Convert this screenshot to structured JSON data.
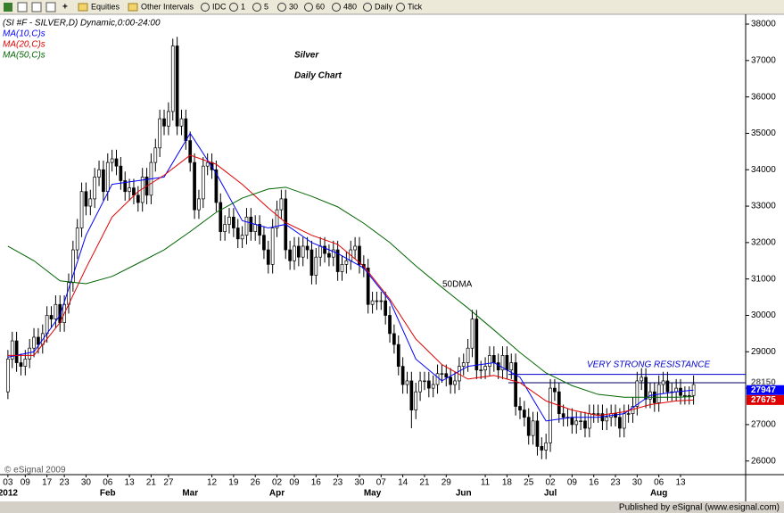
{
  "toolbar": {
    "items": [
      "Equities",
      "Other Intervals",
      "IDC",
      "1",
      "5",
      "30",
      "60",
      "480",
      "Daily",
      "Tick"
    ]
  },
  "footer": {
    "publisher": "Published by eSignal (www.esignal.com)",
    "copyright": "© eSignal 2009"
  },
  "chart_data": {
    "type": "candlestick",
    "title": "(SI #F - SILVER,D) Dynamic,0:00-24:00",
    "annotations": {
      "heading": [
        "Silver",
        "Daily Chart"
      ],
      "ma_label": "50DMA",
      "resistance_label": "VERY STRONG RESISTANCE"
    },
    "xlim": [
      -1,
      170
    ],
    "ylim": [
      25650,
      38270
    ],
    "yticks": [
      26000,
      27000,
      28000,
      29000,
      30000,
      31000,
      32000,
      33000,
      34000,
      35000,
      36000,
      37000,
      38000
    ],
    "xticks": [
      {
        "value": 0,
        "label": "03"
      },
      {
        "value": 4,
        "label": "09"
      },
      {
        "value": 9,
        "label": "17"
      },
      {
        "value": 13,
        "label": "23"
      },
      {
        "value": 18,
        "label": "30"
      },
      {
        "value": 23,
        "label": "06"
      },
      {
        "value": 28,
        "label": "13"
      },
      {
        "value": 33,
        "label": "21"
      },
      {
        "value": 37,
        "label": "27"
      },
      {
        "value": 47,
        "label": "12"
      },
      {
        "value": 52,
        "label": "19"
      },
      {
        "value": 57,
        "label": "26"
      },
      {
        "value": 62,
        "label": "02"
      },
      {
        "value": 66,
        "label": "09"
      },
      {
        "value": 71,
        "label": "16"
      },
      {
        "value": 76,
        "label": "23"
      },
      {
        "value": 81,
        "label": "30"
      },
      {
        "value": 86,
        "label": "07"
      },
      {
        "value": 91,
        "label": "14"
      },
      {
        "value": 96,
        "label": "21"
      },
      {
        "value": 101,
        "label": "29"
      },
      {
        "value": 110,
        "label": "11"
      },
      {
        "value": 115,
        "label": "18"
      },
      {
        "value": 120,
        "label": "25"
      },
      {
        "value": 125,
        "label": "02"
      },
      {
        "value": 130,
        "label": "09"
      },
      {
        "value": 135,
        "label": "16"
      },
      {
        "value": 140,
        "label": "23"
      },
      {
        "value": 145,
        "label": "30"
      },
      {
        "value": 150,
        "label": "06"
      },
      {
        "value": 155,
        "label": "13"
      }
    ],
    "month_ticks": [
      {
        "value": 0,
        "label": "2012"
      },
      {
        "value": 23,
        "label": "Feb"
      },
      {
        "value": 42,
        "label": "Mar"
      },
      {
        "value": 62,
        "label": "Apr"
      },
      {
        "value": 84,
        "label": "May"
      },
      {
        "value": 105,
        "label": "Jun"
      },
      {
        "value": 125,
        "label": "Jul"
      },
      {
        "value": 150,
        "label": "Aug"
      }
    ],
    "candles": {
      "up_color": "#ffffff",
      "down_color": "#000000",
      "open": [
        27900,
        28800,
        29300,
        28700,
        28600,
        28800,
        29100,
        29400,
        29200,
        29500,
        30000,
        29900,
        30300,
        29800,
        30300,
        30900,
        31800,
        32400,
        33400,
        33000,
        33200,
        33800,
        34000,
        33400,
        34200,
        34300,
        34100,
        33700,
        33400,
        33500,
        33300,
        33100,
        33800,
        33300,
        34200,
        34600,
        35400,
        35200,
        35600,
        37400,
        35200,
        35400,
        34800,
        34200,
        32900,
        33200,
        34100,
        34200,
        34000,
        33100,
        32300,
        32500,
        32700,
        32400,
        32100,
        32200,
        32700,
        32300,
        32500,
        32200,
        31800,
        31400,
        32400,
        32900,
        33200,
        31800,
        31500,
        31900,
        31600,
        31900,
        31800,
        31100,
        31600,
        31900,
        31700,
        31600,
        31800,
        31200,
        31400,
        31500,
        31800,
        31900,
        31400,
        31300,
        30300,
        30400,
        30400,
        30400,
        30000,
        29500,
        29200,
        28600,
        28100,
        28200,
        27400,
        27900,
        28200,
        28200,
        28000,
        28100,
        28400,
        28400,
        28300,
        28100,
        28200,
        28600,
        28700,
        29100,
        29900,
        28500,
        28500,
        28600,
        28900,
        28700,
        28500,
        28900,
        28500,
        28700,
        27500,
        27400,
        27200,
        26700,
        27100,
        26400,
        26300,
        26500,
        28000,
        27900,
        27300,
        27200,
        27200,
        27000,
        27100,
        27100,
        26900,
        27300,
        27300,
        27300,
        27100,
        27200,
        27300,
        27200,
        26900,
        27300,
        27300,
        27500,
        28200,
        28300,
        27700,
        27900,
        27600,
        28100,
        28200,
        27900,
        27900,
        28000,
        27800,
        27800,
        27800
      ],
      "high": [
        29050,
        29550,
        29550,
        28950,
        29050,
        29350,
        29650,
        29650,
        29750,
        30250,
        30250,
        30550,
        30550,
        30550,
        31150,
        32050,
        32650,
        33650,
        33650,
        33450,
        34050,
        34250,
        34250,
        34450,
        34550,
        34550,
        34350,
        33950,
        33750,
        33750,
        33550,
        34050,
        34050,
        34450,
        34850,
        35650,
        35650,
        35850,
        37600,
        37650,
        35650,
        35650,
        35050,
        34450,
        33450,
        34350,
        34450,
        34450,
        34250,
        33350,
        32750,
        32950,
        32950,
        32650,
        32450,
        32950,
        32950,
        32750,
        32750,
        32450,
        32050,
        32650,
        33150,
        33450,
        33450,
        32050,
        32150,
        32150,
        32150,
        32150,
        32050,
        31850,
        32150,
        32150,
        31950,
        32050,
        32050,
        31650,
        31750,
        32050,
        32150,
        32150,
        31650,
        31550,
        30650,
        30650,
        30650,
        30650,
        30250,
        29750,
        29450,
        28850,
        28450,
        28450,
        28150,
        28450,
        28450,
        28450,
        28350,
        28650,
        28650,
        28650,
        28550,
        28450,
        28850,
        28950,
        29350,
        30150,
        30150,
        28750,
        28850,
        29150,
        29150,
        28950,
        29150,
        29150,
        28950,
        28950,
        27750,
        27650,
        27450,
        27350,
        27350,
        26650,
        26750,
        28250,
        28250,
        28150,
        27550,
        27450,
        27450,
        27350,
        27350,
        27350,
        27550,
        27550,
        27550,
        27550,
        27450,
        27550,
        27550,
        27450,
        27550,
        27550,
        27750,
        28450,
        28550,
        28550,
        28150,
        28150,
        28350,
        28450,
        28450,
        28150,
        28250,
        28250,
        28050,
        28050,
        28350
      ],
      "low": [
        27700,
        28550,
        28450,
        28350,
        28350,
        28550,
        28850,
        28950,
        28950,
        29250,
        29650,
        29650,
        29550,
        29550,
        30050,
        30650,
        31550,
        32150,
        32750,
        32750,
        32950,
        33550,
        33150,
        33150,
        33950,
        33850,
        33450,
        33150,
        33150,
        33050,
        32850,
        32850,
        33050,
        33050,
        33950,
        34350,
        34950,
        34950,
        35350,
        34950,
        34950,
        34550,
        33950,
        32650,
        32650,
        32950,
        33850,
        33750,
        32850,
        32050,
        32050,
        32250,
        32150,
        31850,
        31850,
        31950,
        32050,
        32050,
        31950,
        31550,
        31150,
        31150,
        32150,
        32650,
        31550,
        31250,
        31250,
        31350,
        31350,
        31550,
        30850,
        30850,
        31350,
        31450,
        31350,
        31350,
        30950,
        30950,
        31150,
        31250,
        31550,
        31150,
        31050,
        30050,
        30050,
        30150,
        30150,
        29750,
        29250,
        28950,
        28350,
        27850,
        27850,
        26900,
        27150,
        27650,
        27950,
        27750,
        27750,
        27850,
        28150,
        28050,
        27850,
        27850,
        27950,
        28350,
        28450,
        28850,
        28250,
        28250,
        28250,
        28350,
        28450,
        28250,
        28250,
        28250,
        28250,
        27250,
        27150,
        26950,
        26450,
        26450,
        26150,
        26050,
        26050,
        26250,
        27650,
        27050,
        26950,
        26950,
        26750,
        26750,
        26850,
        26650,
        26650,
        27050,
        27050,
        26850,
        26850,
        26950,
        26950,
        26650,
        26650,
        27050,
        27050,
        27250,
        27950,
        27450,
        27450,
        27350,
        27350,
        27850,
        27650,
        27650,
        27650,
        27550,
        27550,
        27550,
        27550
      ],
      "close": [
        28800,
        29300,
        28700,
        28600,
        28800,
        29100,
        29400,
        29200,
        29500,
        30000,
        29900,
        30300,
        29800,
        30300,
        30900,
        31800,
        32400,
        33400,
        33000,
        33200,
        33800,
        34000,
        33400,
        34200,
        34300,
        34100,
        33700,
        33400,
        33500,
        33300,
        33100,
        33800,
        33300,
        34200,
        34600,
        35400,
        35200,
        35600,
        37400,
        35200,
        35400,
        34800,
        34200,
        32900,
        33200,
        34100,
        34200,
        34000,
        33100,
        32300,
        32500,
        32700,
        32400,
        32100,
        32200,
        32700,
        32300,
        32500,
        32200,
        31800,
        31400,
        32400,
        32900,
        33200,
        31800,
        31500,
        31900,
        31600,
        31900,
        31800,
        31100,
        31600,
        31900,
        31700,
        31600,
        31800,
        31200,
        31400,
        31500,
        31800,
        31900,
        31400,
        31300,
        30300,
        30400,
        30400,
        30400,
        30000,
        29500,
        29200,
        28600,
        28100,
        28200,
        27400,
        27900,
        28200,
        28200,
        28000,
        28100,
        28400,
        28400,
        28300,
        28100,
        28200,
        28600,
        28700,
        29100,
        29900,
        28500,
        28500,
        28600,
        28900,
        28700,
        28500,
        28900,
        28500,
        28700,
        27500,
        27400,
        27200,
        26700,
        27100,
        26400,
        26300,
        26500,
        28000,
        27900,
        27300,
        27200,
        27200,
        27000,
        27100,
        27100,
        26900,
        27300,
        27300,
        27300,
        27100,
        27200,
        27300,
        27200,
        26900,
        27300,
        27300,
        27500,
        28200,
        28300,
        27700,
        27900,
        27600,
        28100,
        28200,
        27900,
        27900,
        28000,
        27800,
        27800,
        27800,
        28100
      ]
    },
    "series": [
      {
        "name": "MA(10,C)s",
        "color": "#0000ff",
        "x": [
          0,
          6,
          12,
          18,
          24,
          30,
          36,
          42,
          48,
          54,
          60,
          64,
          70,
          76,
          82,
          88,
          94,
          100,
          106,
          112,
          118,
          124,
          130,
          136,
          142,
          148,
          154,
          158
        ],
        "values": [
          28850,
          29000,
          30000,
          32200,
          33600,
          33700,
          33800,
          35000,
          33900,
          32600,
          32400,
          32500,
          32000,
          31700,
          31300,
          30400,
          28800,
          28200,
          28600,
          28700,
          28300,
          27100,
          27200,
          27200,
          27300,
          27800,
          27900,
          27947
        ]
      },
      {
        "name": "MA(20,C)s",
        "color": "#e00000",
        "x": [
          0,
          6,
          12,
          18,
          24,
          30,
          36,
          42,
          48,
          54,
          60,
          64,
          70,
          76,
          82,
          88,
          94,
          100,
          106,
          112,
          118,
          124,
          130,
          136,
          142,
          148,
          154,
          158
        ],
        "values": [
          28900,
          28900,
          29800,
          31300,
          32700,
          33400,
          33850,
          34400,
          34150,
          33600,
          32950,
          32550,
          32200,
          31950,
          31350,
          30450,
          29350,
          28650,
          28250,
          28350,
          28150,
          27650,
          27400,
          27250,
          27350,
          27550,
          27650,
          27675
        ]
      },
      {
        "name": "MA(50,C)s",
        "color": "#006400",
        "x": [
          0,
          6,
          12,
          18,
          24,
          30,
          36,
          42,
          48,
          54,
          60,
          64,
          70,
          76,
          82,
          88,
          94,
          100,
          106,
          112,
          118,
          124,
          130,
          136,
          142,
          148,
          154,
          158
        ],
        "values": [
          31900,
          31500,
          30950,
          30870,
          31070,
          31430,
          31800,
          32300,
          32830,
          33220,
          33470,
          33520,
          33270,
          32980,
          32530,
          32000,
          31360,
          30770,
          30200,
          29600,
          28980,
          28420,
          28070,
          27830,
          27750,
          27750,
          27750,
          27770
        ]
      }
    ],
    "resistance_lines": [
      {
        "value": 28380,
        "color": "#0000cc"
      },
      {
        "value": 28150,
        "color": "#000066"
      }
    ],
    "price_tags": [
      {
        "value": 28150,
        "color": "#666666",
        "background": "#ffffff"
      },
      {
        "value": 27947,
        "color": "#ffffff",
        "background": "#0000ff"
      },
      {
        "value": 27675,
        "color": "#ffffff",
        "background": "#e00000"
      }
    ]
  }
}
